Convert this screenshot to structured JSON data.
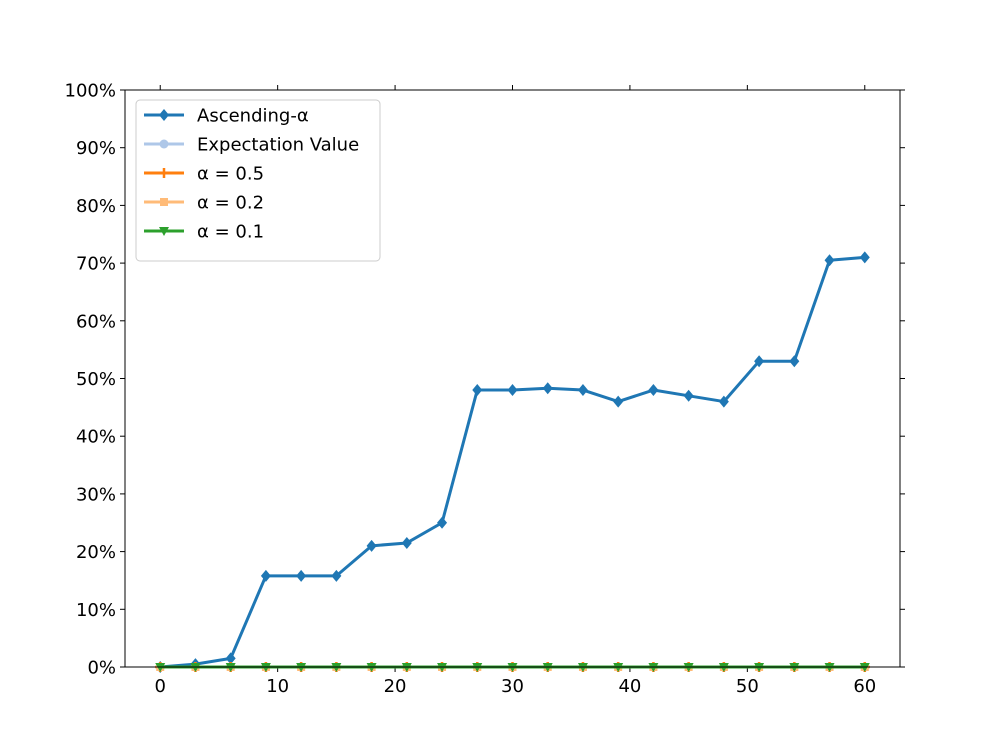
{
  "chart_data": {
    "type": "line",
    "title": "",
    "xlabel": "",
    "ylabel": "",
    "xlim": [
      -3,
      63
    ],
    "ylim": [
      0,
      100
    ],
    "y_format": "percent",
    "grid": false,
    "legend_position": "upper-left",
    "x": [
      0,
      3,
      6,
      9,
      12,
      15,
      18,
      21,
      24,
      27,
      30,
      33,
      36,
      39,
      42,
      45,
      48,
      51,
      54,
      57,
      60
    ],
    "x_ticks": [
      0,
      10,
      20,
      30,
      40,
      50,
      60
    ],
    "y_ticks": [
      0,
      10,
      20,
      30,
      40,
      50,
      60,
      70,
      80,
      90,
      100
    ],
    "x_tick_labels": [
      "0",
      "10",
      "20",
      "30",
      "40",
      "50",
      "60"
    ],
    "y_tick_labels": [
      "0%",
      "10%",
      "20%",
      "30%",
      "40%",
      "50%",
      "60%",
      "70%",
      "80%",
      "90%",
      "100%"
    ],
    "series": [
      {
        "name": "Ascending-α",
        "color": "#1f77b4",
        "marker": "diamond",
        "values": [
          0,
          0.5,
          1.5,
          15.8,
          15.8,
          15.8,
          21,
          21.5,
          25,
          48,
          48,
          48.3,
          48,
          46,
          48,
          47,
          46,
          53,
          53,
          70.5,
          71
        ]
      },
      {
        "name": "Expectation Value",
        "color": "#aec7e8",
        "marker": "circle",
        "values": [
          0,
          0,
          0,
          0,
          0,
          0,
          0,
          0,
          0,
          0,
          0,
          0,
          0,
          0,
          0,
          0,
          0,
          0,
          0,
          0,
          0
        ]
      },
      {
        "name": "α = 0.5",
        "color": "#ff7f0e",
        "marker": "plus",
        "values": [
          0,
          0,
          0,
          0,
          0,
          0,
          0,
          0,
          0,
          0,
          0,
          0,
          0,
          0,
          0,
          0,
          0,
          0,
          0,
          0,
          0
        ]
      },
      {
        "name": "α = 0.2",
        "color": "#ffbb78",
        "marker": "square",
        "values": [
          0,
          0,
          0,
          0,
          0,
          0,
          0,
          0,
          0,
          0,
          0,
          0,
          0,
          0,
          0,
          0,
          0,
          0,
          0,
          0,
          0
        ]
      },
      {
        "name": "α = 0.1",
        "color": "#2ca02c",
        "marker": "triangle-down",
        "values": [
          0,
          0,
          0,
          0,
          0,
          0,
          0,
          0,
          0,
          0,
          0,
          0,
          0,
          0,
          0,
          0,
          0,
          0,
          0,
          0,
          0
        ]
      }
    ]
  }
}
